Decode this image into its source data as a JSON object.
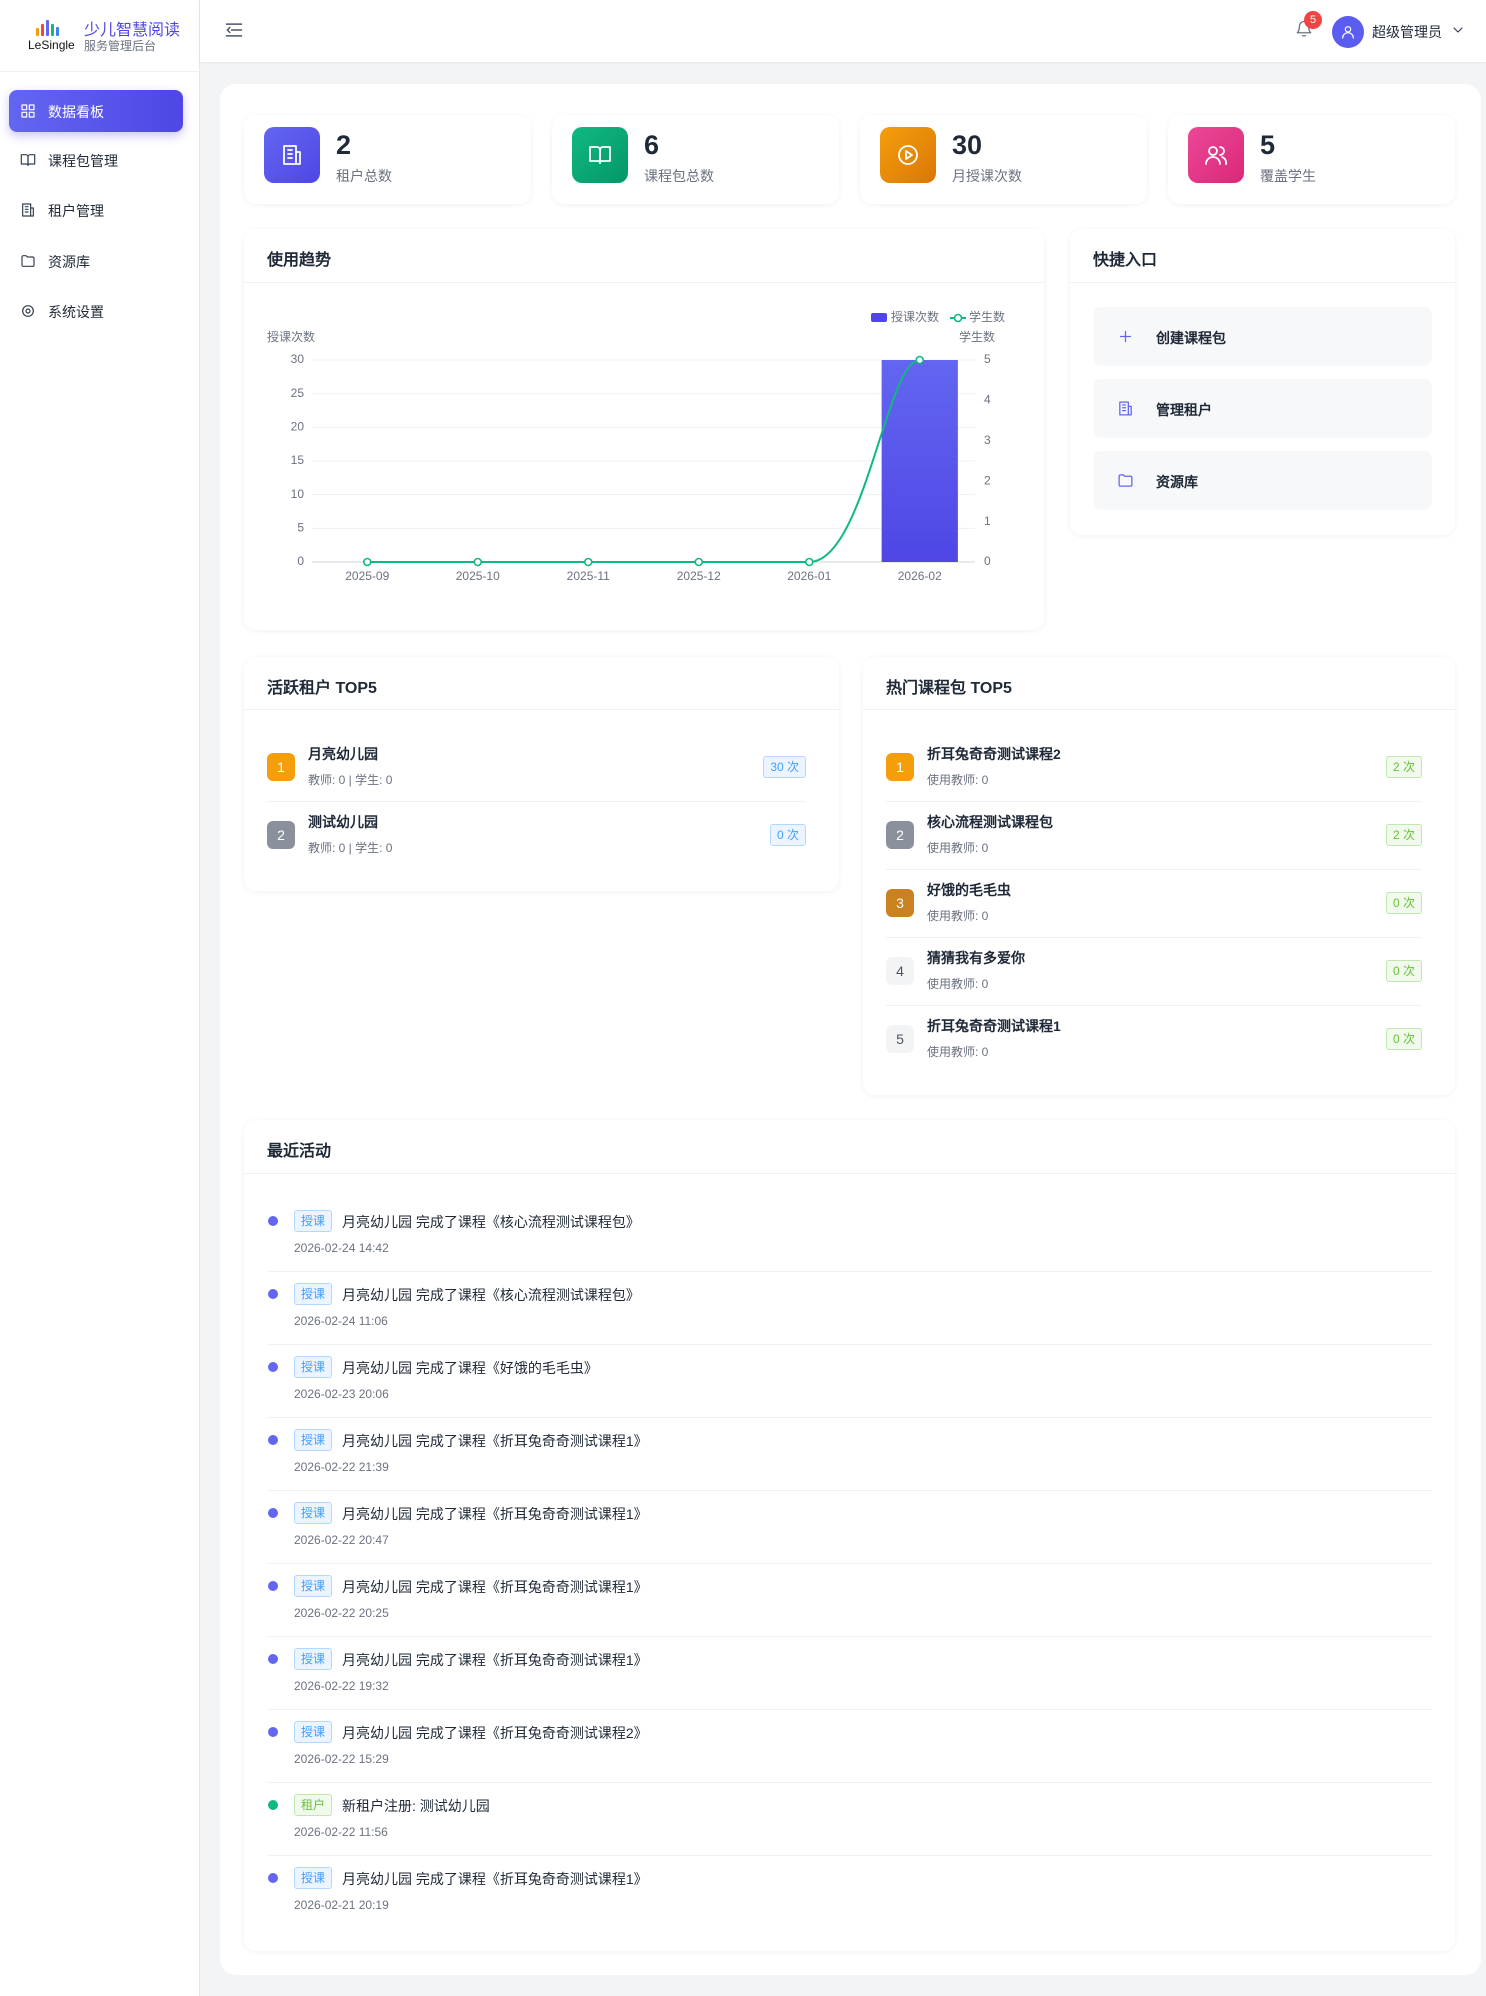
{
  "sidebar": {
    "logo": "LeSingle",
    "title": "少儿智慧阅读",
    "subtitle": "服务管理后台",
    "items": [
      "数据看板",
      "课程包管理",
      "租户管理",
      "资源库",
      "系统设置"
    ]
  },
  "header": {
    "notifications": 5,
    "user": "超级管理员"
  },
  "stats": [
    {
      "value": 2,
      "label": "租户总数"
    },
    {
      "value": 6,
      "label": "课程包总数"
    },
    {
      "value": 30,
      "label": "月授课次数"
    },
    {
      "value": 5,
      "label": "覆盖学生"
    }
  ],
  "trend_title": "使用趋势",
  "chart_data": {
    "type": "bar",
    "categories": [
      "2025-09",
      "2025-10",
      "2025-11",
      "2025-12",
      "2026-01",
      "2026-02"
    ],
    "series": [
      {
        "name": "授课次数",
        "color": "#4f46e5",
        "values": [
          0,
          0,
          0,
          0,
          0,
          30
        ]
      },
      {
        "name": "学生数",
        "color": "#10b981",
        "values": [
          0,
          0,
          0,
          0,
          0,
          5
        ],
        "axis": "y2",
        "type": "line"
      }
    ],
    "y_label": "授课次数",
    "y2_label": "学生数",
    "ylim": [
      0,
      30
    ],
    "yticks": [
      0,
      5,
      10,
      15,
      20,
      25,
      30
    ],
    "y2lim": [
      0,
      5
    ],
    "y2ticks": [
      0,
      1,
      2,
      3,
      4,
      5
    ],
    "grid": true
  },
  "quick": {
    "title": "快捷入口",
    "items": [
      "创建课程包",
      "管理租户",
      "资源库"
    ]
  },
  "tenants": {
    "title": "活跃租户 TOP5",
    "rows": [
      {
        "rank": "1",
        "name": "月亮幼儿园",
        "detail": "教师: 0 | 学生: 0",
        "badge": "30 次"
      },
      {
        "rank": "2",
        "name": "测试幼儿园",
        "detail": "教师: 0 | 学生: 0",
        "badge": "0 次"
      }
    ]
  },
  "courses": {
    "title": "热门课程包 TOP5",
    "rows": [
      {
        "rank": "1",
        "name": "折耳兔奇奇测试课程2",
        "detail": "使用教师: 0",
        "badge": "2 次"
      },
      {
        "rank": "2",
        "name": "核心流程测试课程包",
        "detail": "使用教师: 0",
        "badge": "2 次"
      },
      {
        "rank": "3",
        "name": "好饿的毛毛虫",
        "detail": "使用教师: 0",
        "badge": "0 次"
      },
      {
        "rank": "4",
        "name": "猜猜我有多爱你",
        "detail": "使用教师: 0",
        "badge": "0 次"
      },
      {
        "rank": "5",
        "name": "折耳兔奇奇测试课程1",
        "detail": "使用教师: 0",
        "badge": "0 次"
      }
    ]
  },
  "activity": {
    "title": "最近活动",
    "rows": [
      {
        "tag": "授课",
        "color": "#6366f1",
        "text": "月亮幼儿园 完成了课程《核心流程测试课程包》",
        "time": "2026-02-24 14:42"
      },
      {
        "tag": "授课",
        "color": "#6366f1",
        "text": "月亮幼儿园 完成了课程《核心流程测试课程包》",
        "time": "2026-02-24 11:06"
      },
      {
        "tag": "授课",
        "color": "#6366f1",
        "text": "月亮幼儿园 完成了课程《好饿的毛毛虫》",
        "time": "2026-02-23 20:06"
      },
      {
        "tag": "授课",
        "color": "#6366f1",
        "text": "月亮幼儿园 完成了课程《折耳兔奇奇测试课程1》",
        "time": "2026-02-22 21:39"
      },
      {
        "tag": "授课",
        "color": "#6366f1",
        "text": "月亮幼儿园 完成了课程《折耳兔奇奇测试课程1》",
        "time": "2026-02-22 20:47"
      },
      {
        "tag": "授课",
        "color": "#6366f1",
        "text": "月亮幼儿园 完成了课程《折耳兔奇奇测试课程1》",
        "time": "2026-02-22 20:25"
      },
      {
        "tag": "授课",
        "color": "#6366f1",
        "text": "月亮幼儿园 完成了课程《折耳兔奇奇测试课程1》",
        "time": "2026-02-22 19:32"
      },
      {
        "tag": "授课",
        "color": "#6366f1",
        "text": "月亮幼儿园 完成了课程《折耳兔奇奇测试课程2》",
        "time": "2026-02-22 15:29"
      },
      {
        "tag": "租户",
        "color": "#10b981",
        "text": "新租户注册: 测试幼儿园",
        "time": "2026-02-22 11:56"
      },
      {
        "tag": "授课",
        "color": "#6366f1",
        "text": "月亮幼儿园 完成了课程《折耳兔奇奇测试课程1》",
        "time": "2026-02-21 20:19"
      }
    ]
  }
}
